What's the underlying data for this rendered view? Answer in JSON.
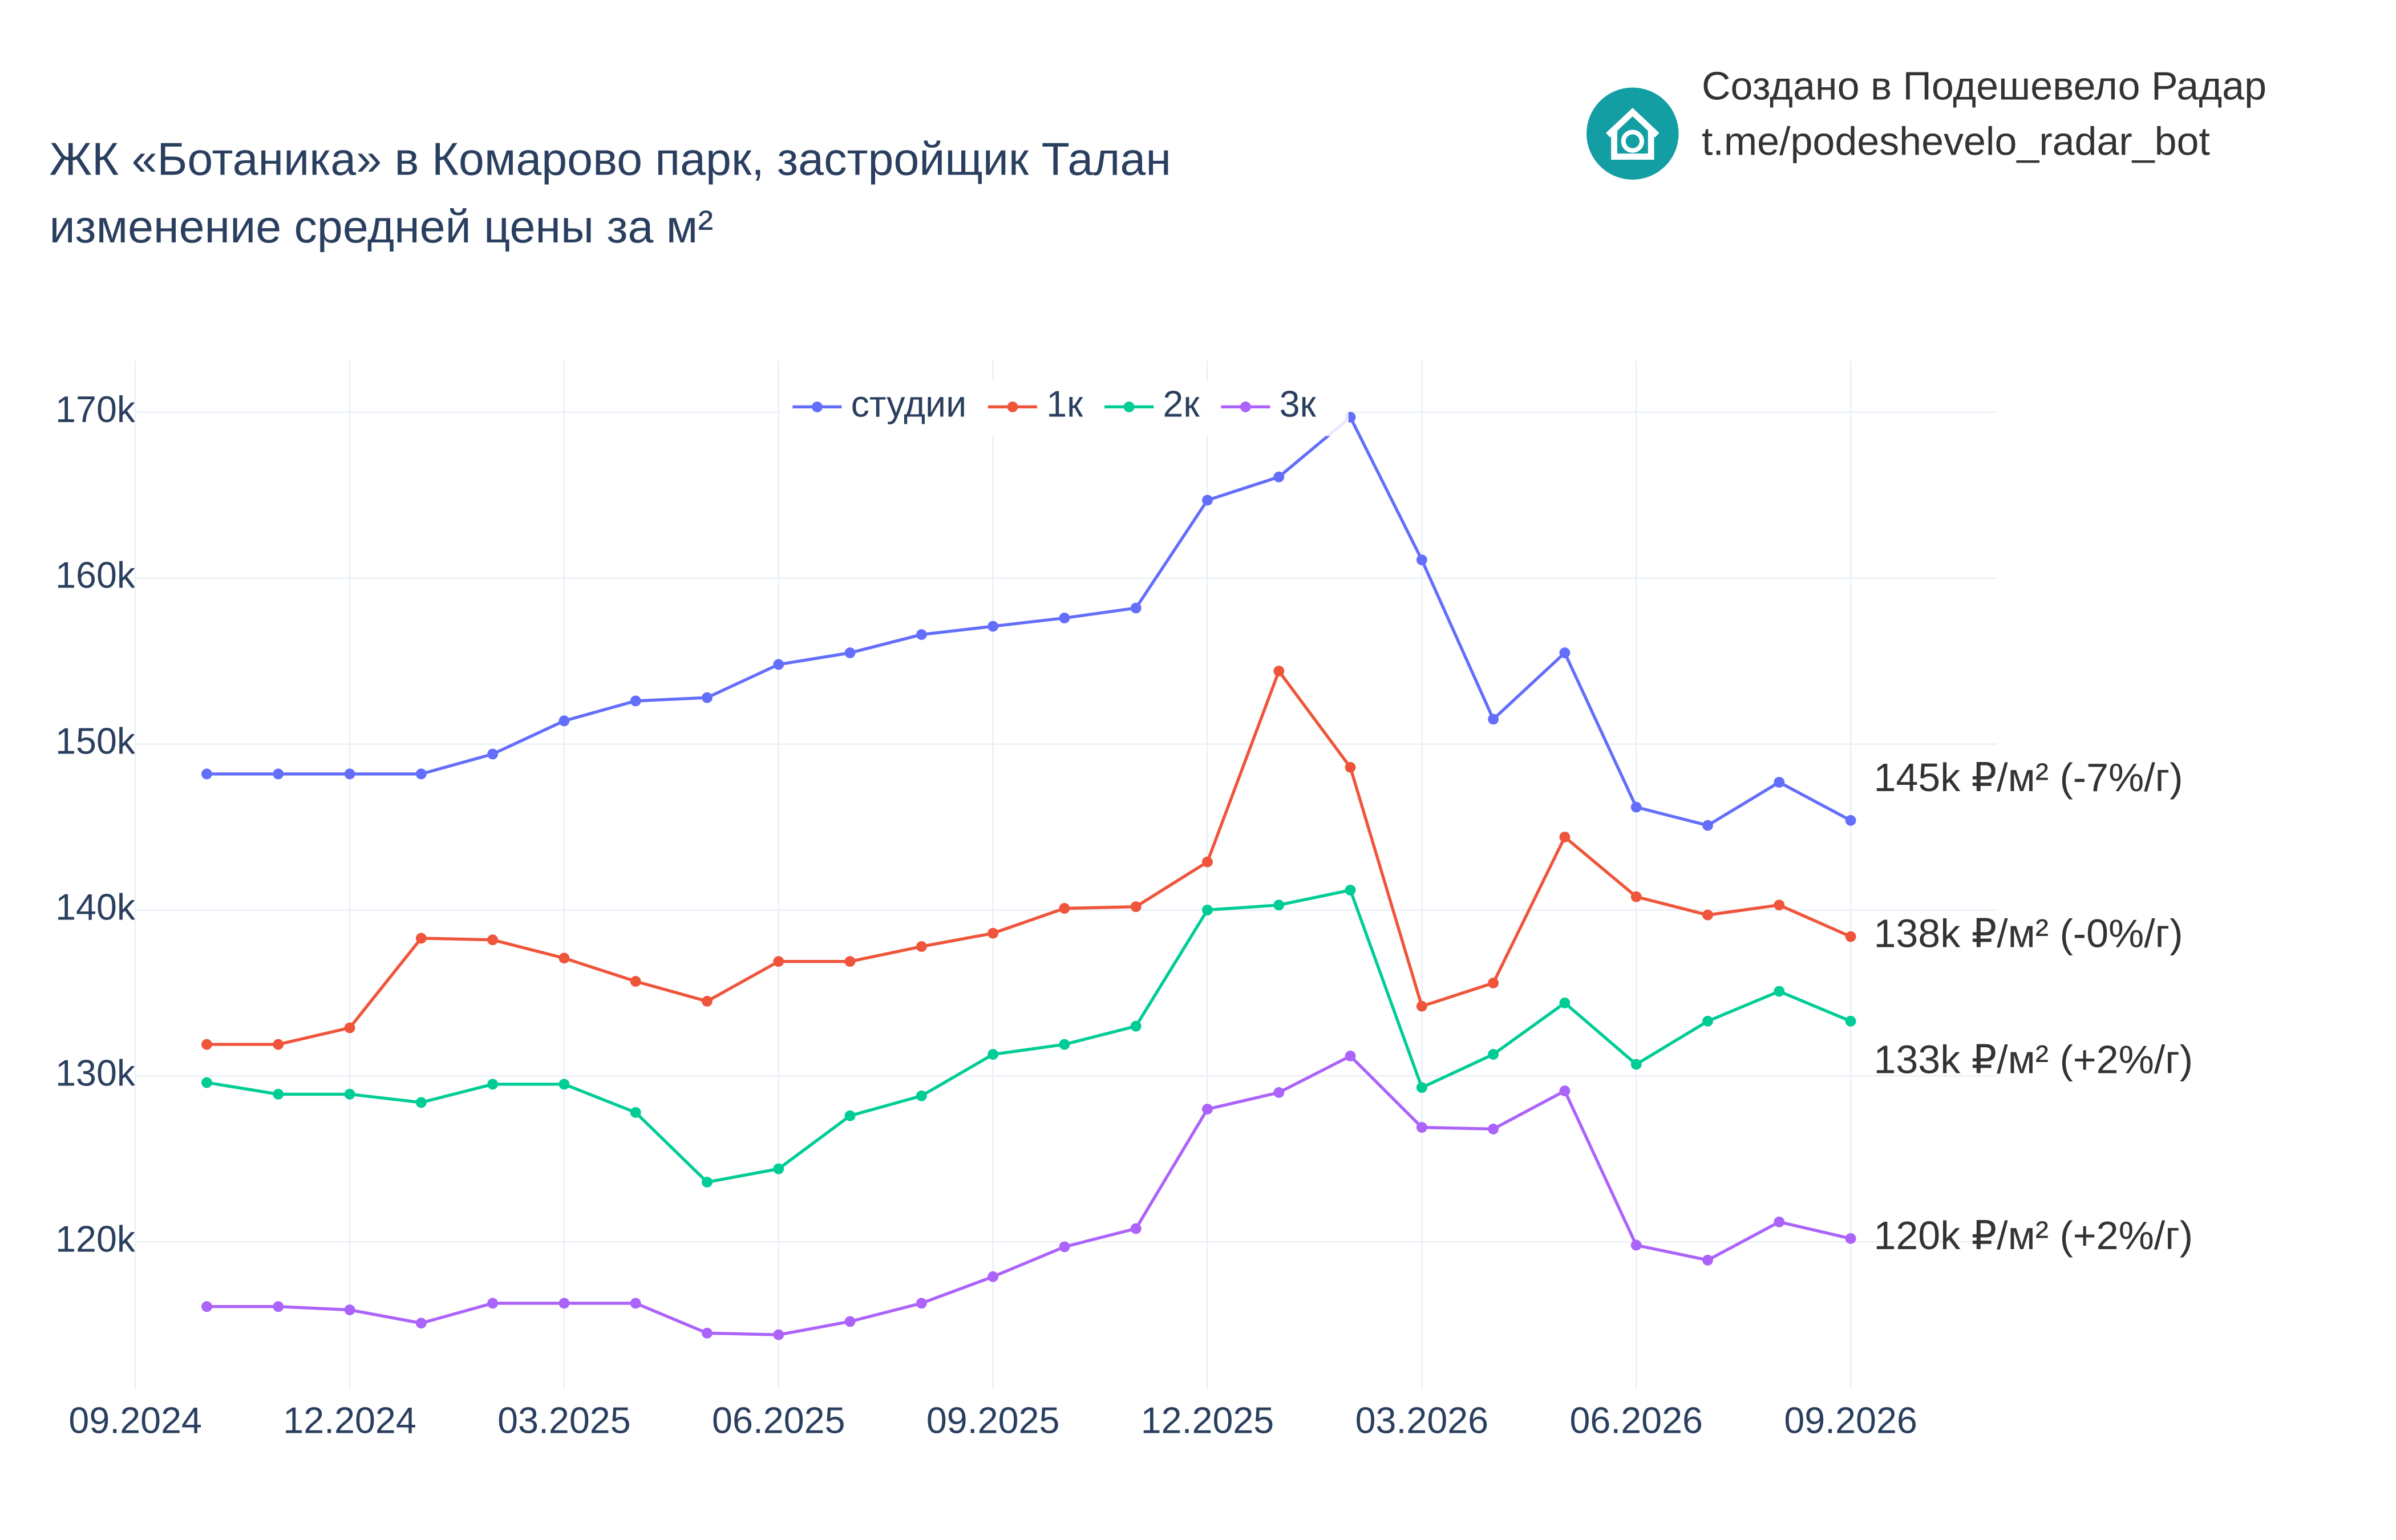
{
  "chart_data": {
    "type": "line",
    "title": "ЖК «Ботаника» в Комарово парк, застройщик Талан",
    "subtitle": "изменение средней цены за м²",
    "credit": "Создано в Подешевело Радар",
    "credit_link": "t.me/podeshevelo_radar_bot",
    "x": [
      "2024-10",
      "2024-11",
      "2024-12",
      "2025-01",
      "2025-02",
      "2025-03",
      "2025-04",
      "2025-05",
      "2025-06",
      "2025-07",
      "2025-08",
      "2025-09",
      "2025-10",
      "2025-11",
      "2025-12",
      "2026-01",
      "2026-02",
      "2026-03",
      "2026-04",
      "2026-05",
      "2026-06",
      "2026-07",
      "2026-08",
      "2026-09"
    ],
    "xticks": [
      {
        "value": "2024-09",
        "label": "09.2024"
      },
      {
        "value": "2024-12",
        "label": "12.2024"
      },
      {
        "value": "2025-03",
        "label": "03.2025"
      },
      {
        "value": "2025-06",
        "label": "06.2025"
      },
      {
        "value": "2025-09",
        "label": "09.2025"
      },
      {
        "value": "2025-12",
        "label": "12.2025"
      },
      {
        "value": "2026-03",
        "label": "03.2026"
      },
      {
        "value": "2026-06",
        "label": "06.2026"
      },
      {
        "value": "2026-09",
        "label": "09.2026"
      }
    ],
    "ylim": [
      111100,
      173100
    ],
    "yticks": [
      {
        "value": 120000,
        "label": "120k"
      },
      {
        "value": 130000,
        "label": "130k"
      },
      {
        "value": 140000,
        "label": "140k"
      },
      {
        "value": 150000,
        "label": "150k"
      },
      {
        "value": 160000,
        "label": "160k"
      },
      {
        "value": 170000,
        "label": "170k"
      }
    ],
    "grid": true,
    "legend": "top",
    "series": [
      {
        "name": "студии",
        "color": "#636efa",
        "values": [
          148200,
          148200,
          148200,
          148200,
          149400,
          151400,
          152600,
          152800,
          154800,
          155500,
          156600,
          157100,
          157600,
          158200,
          164700,
          166100,
          169700,
          161100,
          151500,
          155500,
          146200,
          145100,
          147700,
          145400
        ],
        "end_label": "145k ₽/м² (-7%/г)"
      },
      {
        "name": "1к",
        "color": "#ef553b",
        "values": [
          131900,
          131900,
          132900,
          138300,
          138200,
          137100,
          135700,
          134500,
          136900,
          136900,
          137800,
          138600,
          140100,
          140200,
          142900,
          154400,
          148600,
          134200,
          135600,
          144400,
          140800,
          139700,
          140300,
          138400
        ],
        "end_label": "138k ₽/м² (-0%/г)"
      },
      {
        "name": "2к",
        "color": "#00cc96",
        "values": [
          129600,
          128900,
          128900,
          128400,
          129500,
          129500,
          127800,
          123600,
          124400,
          127600,
          128800,
          131300,
          131900,
          133000,
          140000,
          140300,
          141200,
          129300,
          131300,
          134400,
          130700,
          133300,
          135100,
          133300
        ],
        "end_label": "133k ₽/м² (+2%/г)"
      },
      {
        "name": "3к",
        "color": "#ab63fa",
        "values": [
          116100,
          116100,
          115900,
          115100,
          116300,
          116300,
          116300,
          114500,
          114400,
          115200,
          116300,
          117900,
          119700,
          120800,
          128000,
          129000,
          131200,
          126900,
          126800,
          129100,
          119800,
          118900,
          121200,
          120200
        ],
        "end_label": "120k ₽/м² (+2%/г)"
      }
    ]
  }
}
